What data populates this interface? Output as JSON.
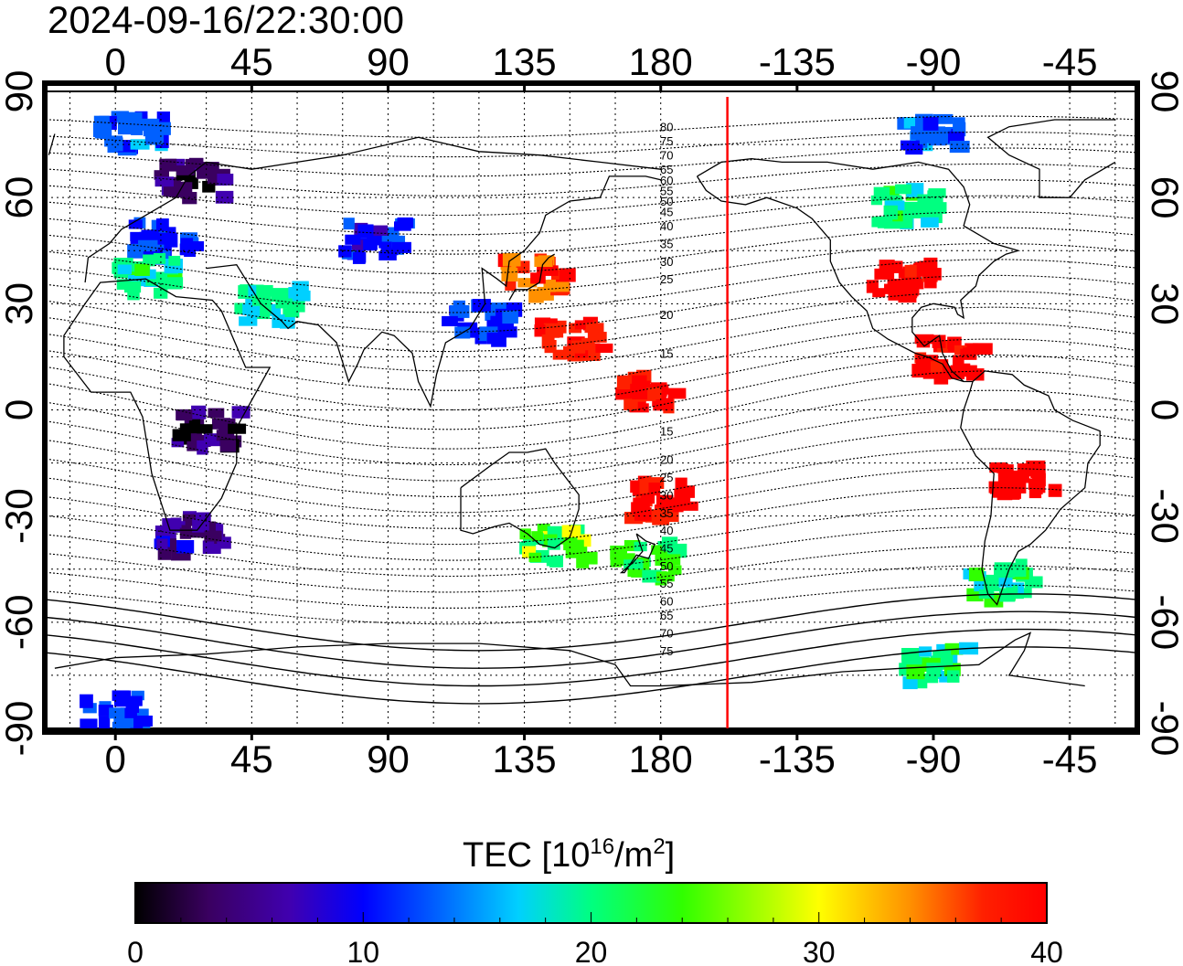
{
  "title": "2024-09-16/22:30:00",
  "x_ticks": [
    "0",
    "45",
    "90",
    "135",
    "180",
    "-135",
    "-90",
    "-45"
  ],
  "y_ticks_left": [
    "90",
    "60",
    "30",
    "0",
    "-30",
    "-60",
    "-90"
  ],
  "y_ticks_right": [
    "90",
    "60",
    "30",
    "0",
    "-30",
    "-60",
    "-90"
  ],
  "contour_labels": [
    "80",
    "75",
    "70",
    "65",
    "60",
    "55",
    "50",
    "45",
    "40",
    "35",
    "30",
    "25",
    "20",
    "15",
    "15",
    "20",
    "25",
    "30",
    "35",
    "40",
    "45",
    "50",
    "55",
    "60",
    "65",
    "70",
    "75"
  ],
  "colorbar": {
    "title_main": "TEC  [10",
    "title_sup1": "16",
    "title_mid": "/m",
    "title_sup2": "2",
    "title_end": "]",
    "ticks": [
      "0",
      "10",
      "20",
      "30",
      "40"
    ],
    "min": 0,
    "max": 40,
    "colors": [
      "#000000",
      "#3a0060",
      "#4000b0",
      "#0000ff",
      "#0060ff",
      "#00d0ff",
      "#00ff80",
      "#30ff00",
      "#ffff00",
      "#ff9000",
      "#ff2000",
      "#ff0000"
    ]
  },
  "map": {
    "lon_range": [
      -23,
      337
    ],
    "lat_range": [
      -90,
      90
    ],
    "grid": true,
    "terminator_longitude": -158,
    "terminator_color": "#ff0000",
    "tec_regions": [
      {
        "name": "europe-north",
        "lon": 25,
        "lat": 65,
        "tec": 4
      },
      {
        "name": "europe",
        "lon": 15,
        "lat": 48,
        "tec": 13
      },
      {
        "name": "europe-south",
        "lon": 10,
        "lat": 38,
        "tec": 22
      },
      {
        "name": "arctic-europe",
        "lon": 5,
        "lat": 78,
        "tec": 14
      },
      {
        "name": "middle-east",
        "lon": 50,
        "lat": 30,
        "tec": 20
      },
      {
        "name": "central-asia",
        "lon": 85,
        "lat": 48,
        "tec": 11
      },
      {
        "name": "japan",
        "lon": 138,
        "lat": 38,
        "tec": 36
      },
      {
        "name": "east-asia",
        "lon": 120,
        "lat": 25,
        "tec": 12
      },
      {
        "name": "pacific-west",
        "lon": 150,
        "lat": 20,
        "tec": 38
      },
      {
        "name": "central-pacific",
        "lon": 175,
        "lat": 5,
        "tec": 40
      },
      {
        "name": "south-pacific",
        "lon": 180,
        "lat": -25,
        "tec": 40
      },
      {
        "name": "new-zealand",
        "lon": 175,
        "lat": -42,
        "tec": 24
      },
      {
        "name": "australia-south",
        "lon": 145,
        "lat": -38,
        "tec": 25
      },
      {
        "name": "southern-africa",
        "lon": 25,
        "lat": -35,
        "tec": 7
      },
      {
        "name": "africa-central",
        "lon": 30,
        "lat": -5,
        "tec": 3
      },
      {
        "name": "north-america",
        "lon": -100,
        "lat": 38,
        "tec": 40
      },
      {
        "name": "canada",
        "lon": -100,
        "lat": 58,
        "tec": 22
      },
      {
        "name": "arctic-america",
        "lon": -90,
        "lat": 78,
        "tec": 14
      },
      {
        "name": "central-america",
        "lon": -85,
        "lat": 15,
        "tec": 40
      },
      {
        "name": "south-america",
        "lon": -60,
        "lat": -20,
        "tec": 40
      },
      {
        "name": "patagonia",
        "lon": -68,
        "lat": -48,
        "tec": 22
      },
      {
        "name": "antarctic-peninsula",
        "lon": -90,
        "lat": -72,
        "tec": 22
      },
      {
        "name": "antarctica",
        "lon": 0,
        "lat": -85,
        "tec": 12
      }
    ]
  }
}
